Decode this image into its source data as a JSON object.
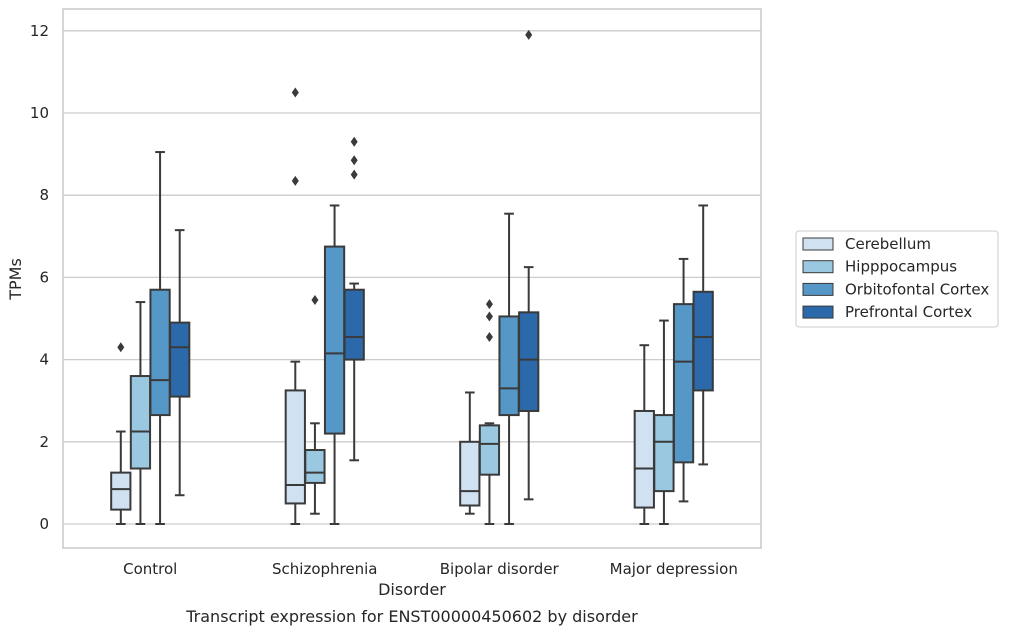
{
  "chart_data": {
    "type": "box",
    "title": "Transcript expression for ENST00000450602 by disorder",
    "xlabel": "Disorder",
    "ylabel": "TPMs",
    "ylim": [
      -0.55,
      12.55
    ],
    "yticks": [
      0,
      2,
      4,
      6,
      8,
      10,
      12
    ],
    "grid": true,
    "legend_position": "right",
    "categories": [
      "Control",
      "Schizophrenia",
      "Bipolar disorder",
      "Major depression"
    ],
    "series": [
      {
        "name": "Cerebellum",
        "color": "#d0e1f2",
        "boxes": [
          {
            "whisker_low": 0,
            "q1": 0.35,
            "median": 0.85,
            "q3": 1.25,
            "whisker_high": 2.25,
            "outliers": [
              4.3
            ]
          },
          {
            "whisker_low": 0,
            "q1": 0.5,
            "median": 0.95,
            "q3": 3.25,
            "whisker_high": 3.95,
            "outliers": [
              8.35,
              10.5
            ]
          },
          {
            "whisker_low": 0.25,
            "q1": 0.45,
            "median": 0.8,
            "q3": 2.0,
            "whisker_high": 3.2,
            "outliers": []
          },
          {
            "whisker_low": 0,
            "q1": 0.4,
            "median": 1.35,
            "q3": 2.75,
            "whisker_high": 4.35,
            "outliers": []
          }
        ]
      },
      {
        "name": "Hipppocampus",
        "color": "#9ac8e0",
        "boxes": [
          {
            "whisker_low": 0,
            "q1": 1.35,
            "median": 2.25,
            "q3": 3.6,
            "whisker_high": 5.4,
            "outliers": []
          },
          {
            "whisker_low": 0.25,
            "q1": 1.0,
            "median": 1.25,
            "q3": 1.8,
            "whisker_high": 2.45,
            "outliers": [
              5.45
            ]
          },
          {
            "whisker_low": 0,
            "q1": 1.2,
            "median": 1.95,
            "q3": 2.4,
            "whisker_high": 2.45,
            "outliers": [
              4.55,
              5.05,
              5.35
            ]
          },
          {
            "whisker_low": 0,
            "q1": 0.8,
            "median": 2.0,
            "q3": 2.65,
            "whisker_high": 4.95,
            "outliers": []
          }
        ]
      },
      {
        "name": "Orbitofontal Cortex",
        "color": "#5597c6",
        "boxes": [
          {
            "whisker_low": 0,
            "q1": 2.65,
            "median": 3.5,
            "q3": 5.7,
            "whisker_high": 9.05,
            "outliers": []
          },
          {
            "whisker_low": 0,
            "q1": 2.2,
            "median": 4.15,
            "q3": 6.75,
            "whisker_high": 7.75,
            "outliers": []
          },
          {
            "whisker_low": 0,
            "q1": 2.65,
            "median": 3.3,
            "q3": 5.05,
            "whisker_high": 7.55,
            "outliers": []
          },
          {
            "whisker_low": 0.55,
            "q1": 1.5,
            "median": 3.95,
            "q3": 5.35,
            "whisker_high": 6.45,
            "outliers": []
          }
        ]
      },
      {
        "name": "Prefrontal Cortex",
        "color": "#2b69aa",
        "boxes": [
          {
            "whisker_low": 0.7,
            "q1": 3.1,
            "median": 4.3,
            "q3": 4.9,
            "whisker_high": 7.15,
            "outliers": []
          },
          {
            "whisker_low": 1.55,
            "q1": 4.0,
            "median": 4.55,
            "q3": 5.7,
            "whisker_high": 5.85,
            "outliers": [
              8.5,
              8.85,
              9.3
            ]
          },
          {
            "whisker_low": 0.6,
            "q1": 2.75,
            "median": 4.0,
            "q3": 5.15,
            "whisker_high": 6.25,
            "outliers": [
              11.9
            ]
          },
          {
            "whisker_low": 1.45,
            "q1": 3.25,
            "median": 4.55,
            "q3": 5.65,
            "whisker_high": 7.75,
            "outliers": []
          }
        ]
      }
    ]
  }
}
